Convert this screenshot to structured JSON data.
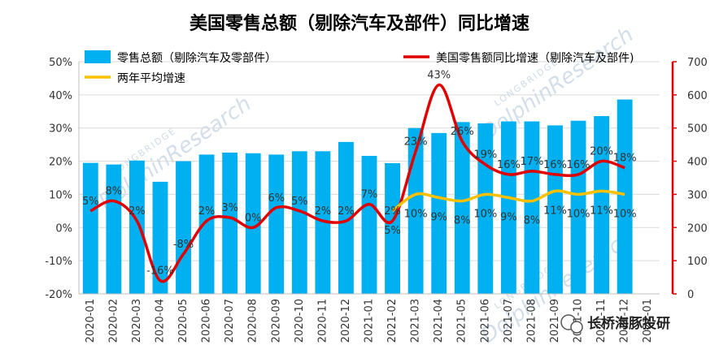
{
  "chart_data": {
    "type": "bar",
    "title": "美国零售总额（剔除汽车及部件）同比增速",
    "categories": [
      "2020-01",
      "2020-02",
      "2020-03",
      "2020-04",
      "2020-05",
      "2020-06",
      "2020-07",
      "2020-08",
      "2020-09",
      "2020-10",
      "2020-11",
      "2020-12",
      "2021-01",
      "2021-02",
      "2021-03",
      "2021-04",
      "2021-05",
      "2021-06",
      "2021-07",
      "2021-08",
      "2021-09",
      "2021-10",
      "2021-11",
      "2021-12",
      "2022-01"
    ],
    "series": [
      {
        "name": "零售总额（剔除汽车及零部件）",
        "type": "bar",
        "axis": "right",
        "color": "#00b0f0",
        "values": [
          395,
          390,
          402,
          338,
          400,
          420,
          426,
          424,
          420,
          430,
          430,
          458,
          416,
          394,
          500,
          485,
          518,
          514,
          520,
          520,
          508,
          522,
          536,
          586,
          null
        ]
      },
      {
        "name": "美国零售额同比增速（剔除汽车及部件)",
        "type": "line",
        "axis": "left",
        "color": "#e00000",
        "values": [
          5,
          8,
          2,
          -16,
          -8,
          2,
          3,
          0,
          6,
          5,
          2,
          2,
          7,
          2,
          23,
          43,
          26,
          19,
          16,
          17,
          16,
          16,
          20,
          18,
          null
        ],
        "labels": [
          "5%",
          "8%",
          "2%",
          "-16%",
          "-8%",
          "2%",
          "3%",
          "0%",
          "6%",
          "5%",
          "2%",
          "2%",
          "7%",
          "2%",
          "23%",
          "43%",
          "26%",
          "19%",
          "16%",
          "17%",
          "16%",
          "16%",
          "20%",
          "18%",
          ""
        ]
      },
      {
        "name": "两年平均增速",
        "type": "line",
        "axis": "left",
        "color": "#ffc000",
        "values": [
          null,
          null,
          null,
          null,
          null,
          null,
          null,
          null,
          null,
          null,
          null,
          null,
          null,
          5,
          10,
          9,
          8,
          10,
          9,
          8,
          11,
          10,
          11,
          10,
          null
        ],
        "labels": [
          "",
          "",
          "",
          "",
          "",
          "",
          "",
          "",
          "",
          "",
          "",
          "",
          "",
          "5%",
          "10%",
          "9%",
          "8%",
          "10%",
          "9%",
          "8%",
          "11%",
          "10%",
          "11%",
          "10%",
          ""
        ]
      }
    ],
    "y_left": {
      "min": -20,
      "max": 50,
      "step": 10,
      "ticks": [
        "-20%",
        "-10%",
        "0%",
        "10%",
        "20%",
        "30%",
        "40%",
        "50%"
      ]
    },
    "y_right": {
      "min": 0,
      "max": 700,
      "step": 100,
      "ticks": [
        "0",
        "100",
        "200",
        "300",
        "400",
        "500",
        "600",
        "700"
      ]
    },
    "grid": true,
    "legend_position": "top"
  },
  "watermark": {
    "text": "DolphinResearch",
    "subtext": "LONGBRIDGE"
  },
  "brand": {
    "label": "长桥海豚投研",
    "icon": "wechat-icon"
  }
}
